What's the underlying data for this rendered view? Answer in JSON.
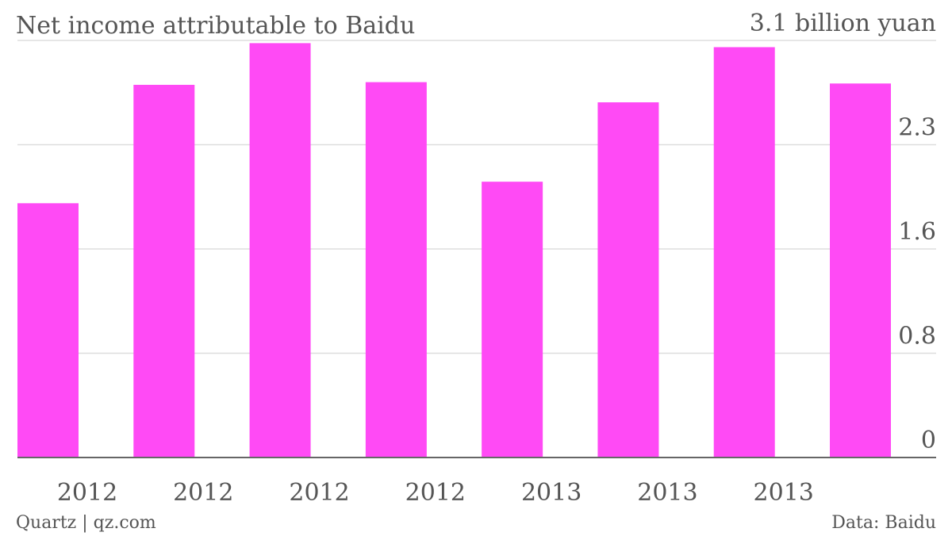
{
  "chart_data": {
    "type": "bar",
    "title": "Net income attributable to Baidu",
    "categories": [
      "2012",
      "2012",
      "2012",
      "2012",
      "2013",
      "2013",
      "2013",
      null
    ],
    "values": [
      1.89,
      2.77,
      3.08,
      2.79,
      2.05,
      2.64,
      3.05,
      2.78
    ],
    "color": "#ff4af5",
    "ylim": [
      0,
      3.1
    ],
    "yticks": [
      0,
      {
        "value": 0.775,
        "label": "0.8"
      },
      {
        "value": 1.55,
        "label": "1.6"
      },
      {
        "value": 2.325,
        "label": "2.3"
      },
      {
        "value": 3.1,
        "label": "3.1 billion yuan"
      }
    ],
    "grid": true,
    "source": "Data: Baidu",
    "credit": "Quartz | qz.com"
  }
}
